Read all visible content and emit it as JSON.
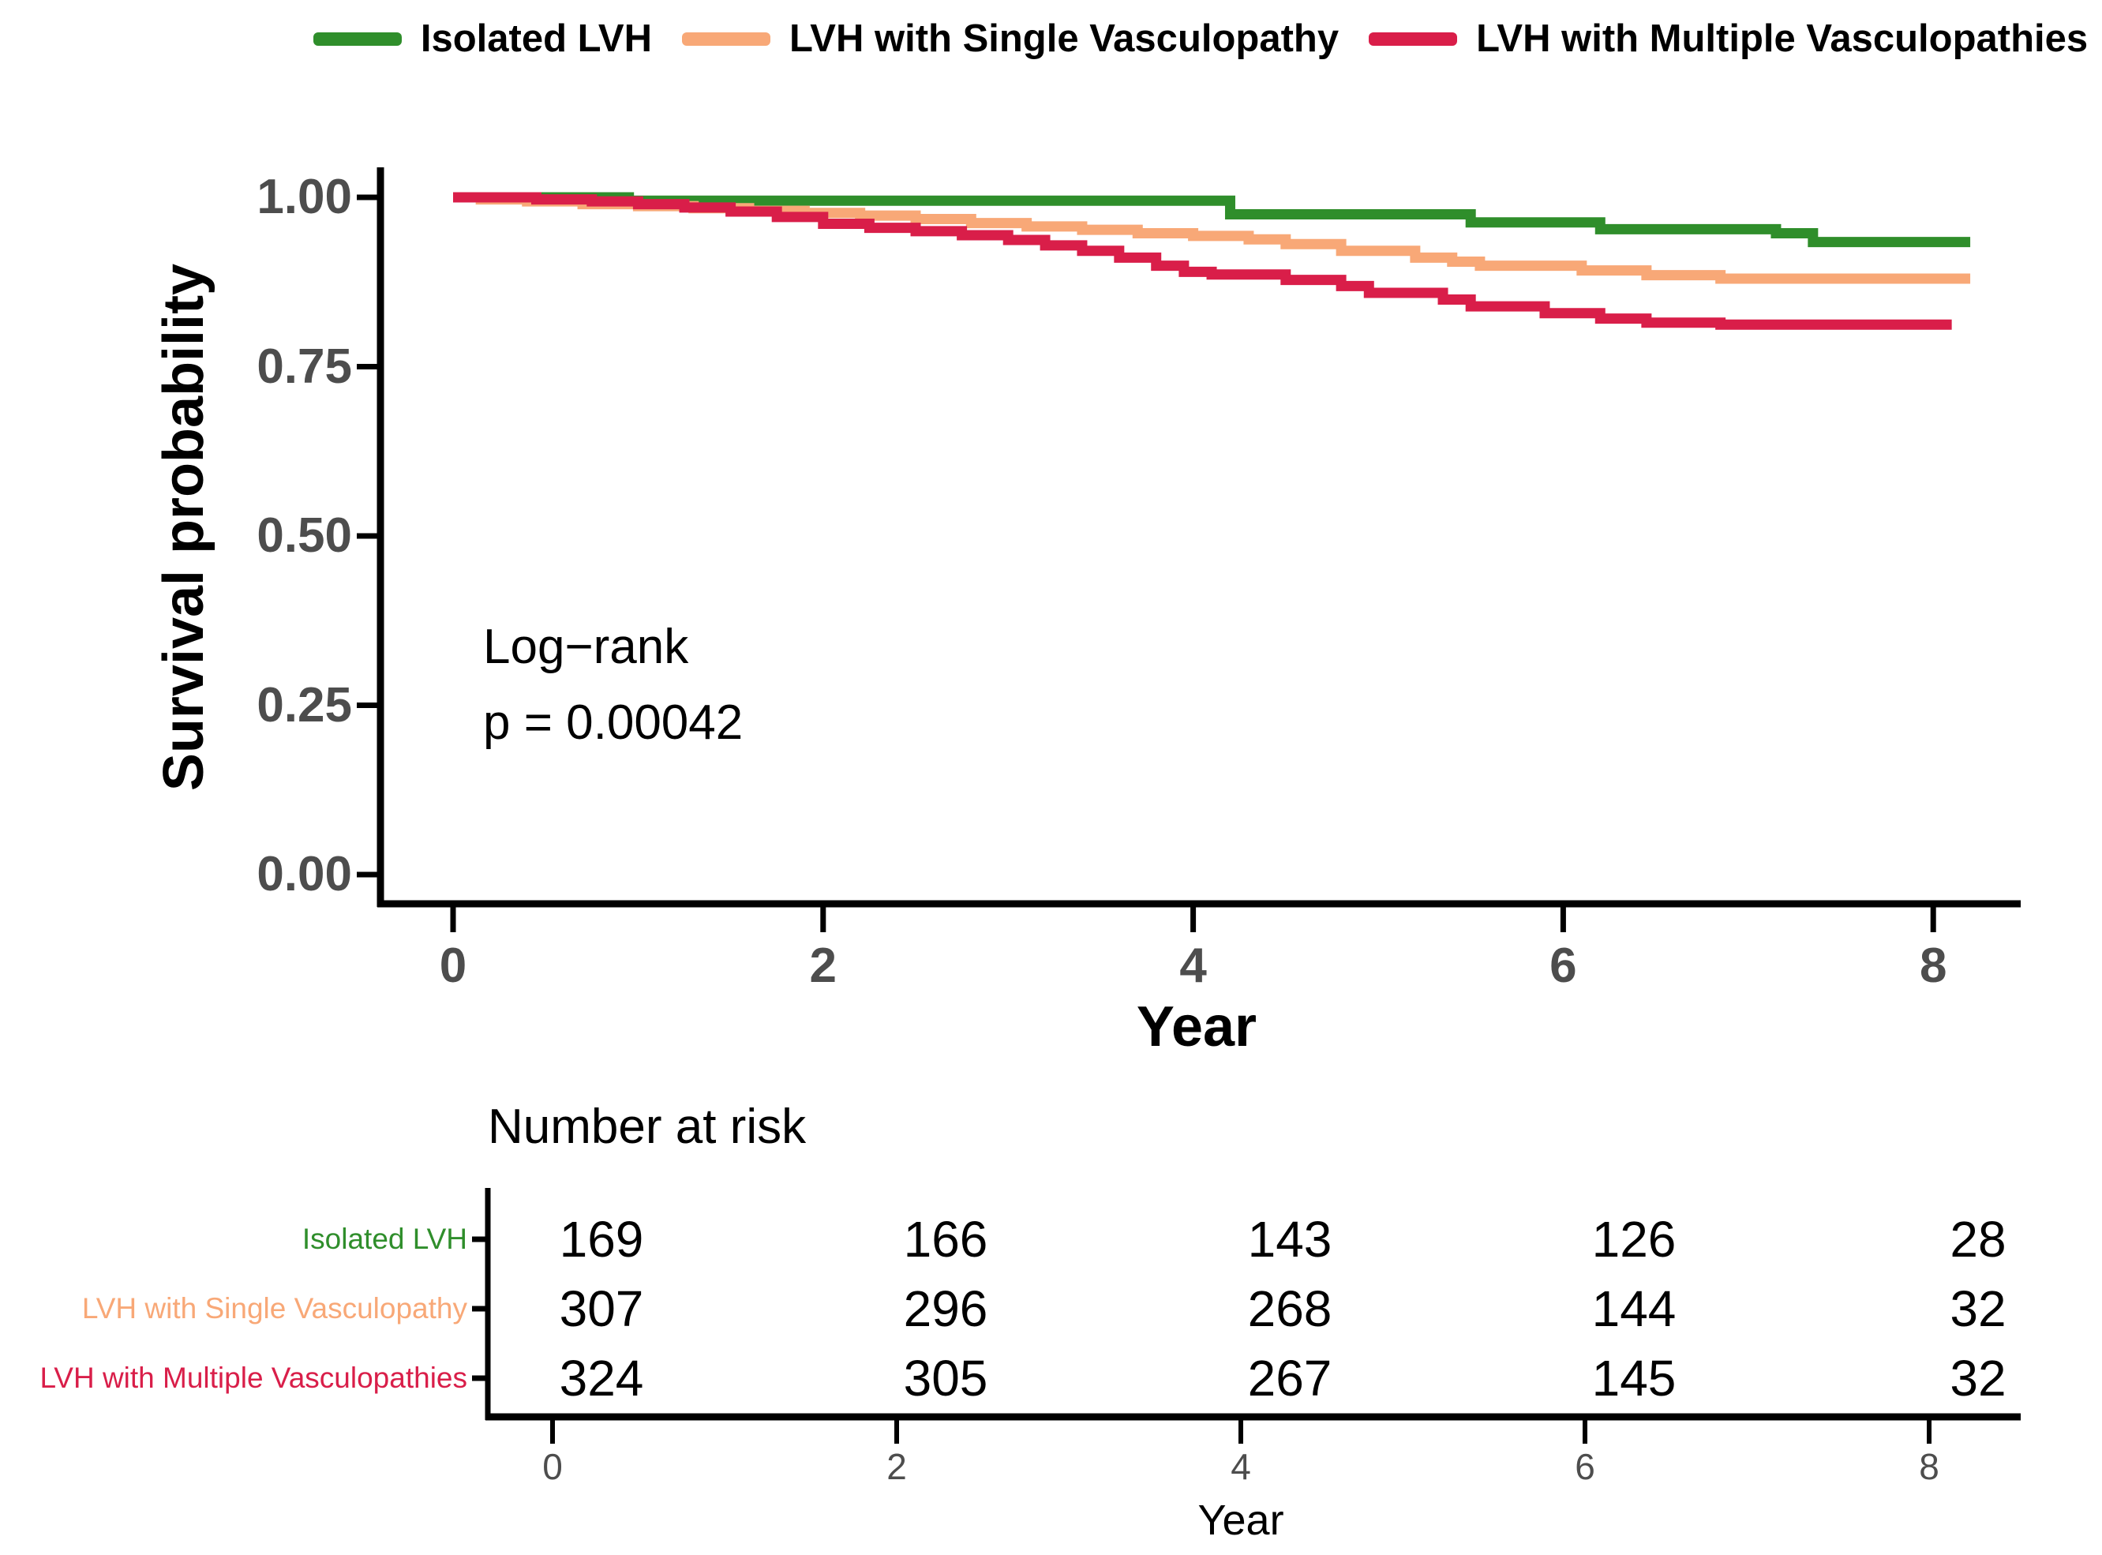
{
  "figure": {
    "kind": "Kaplan-Meier survival plot with number-at-risk table",
    "annotation": {
      "line1": "Log−rank",
      "line2": "p = 0.00042"
    },
    "legend": [
      {
        "label": "Isolated LVH",
        "color": "#2F8E2B"
      },
      {
        "label": "LVH with Single Vasculopathy",
        "color": "#F8A877"
      },
      {
        "label": "LVH with Multiple Vasculopathies",
        "color": "#D91E49"
      }
    ],
    "colors": {
      "axis_text": "#4d4d4d",
      "axis_line": "#000000",
      "background": "#ffffff"
    }
  },
  "chart_data": {
    "type": "line",
    "subtype": "kaplan-meier-step",
    "title": "",
    "xlabel": "Year",
    "ylabel": "Survival probability",
    "xlim": [
      0,
      8.4
    ],
    "ylim": [
      0,
      1.0
    ],
    "grid": false,
    "legend_position": "top",
    "x_ticks": [
      {
        "value": 0,
        "label": "0"
      },
      {
        "value": 2,
        "label": "2"
      },
      {
        "value": 4,
        "label": "4"
      },
      {
        "value": 6,
        "label": "6"
      },
      {
        "value": 8,
        "label": "8"
      }
    ],
    "y_ticks": [
      {
        "value": 1.0,
        "label": "1.00"
      },
      {
        "value": 0.75,
        "label": "0.75"
      },
      {
        "value": 0.5,
        "label": "0.50"
      },
      {
        "value": 0.25,
        "label": "0.25"
      },
      {
        "value": 0.0,
        "label": "0.00"
      }
    ],
    "annotations": [
      "Log−rank",
      "p = 0.00042"
    ],
    "series": [
      {
        "name": "Isolated LVH",
        "color": "#2F8E2B",
        "points": [
          [
            0,
            1.0
          ],
          [
            0.95,
            0.995
          ],
          [
            4.2,
            0.975
          ],
          [
            5.5,
            0.963
          ],
          [
            6.2,
            0.953
          ],
          [
            7.15,
            0.947
          ],
          [
            7.35,
            0.934
          ],
          [
            8.2,
            0.934
          ]
        ]
      },
      {
        "name": "LVH with Single Vasculopathy",
        "color": "#F8A877",
        "points": [
          [
            0,
            1.0
          ],
          [
            0.15,
            0.997
          ],
          [
            0.4,
            0.994
          ],
          [
            0.7,
            0.99
          ],
          [
            1.0,
            0.987
          ],
          [
            1.3,
            0.984
          ],
          [
            1.6,
            0.98
          ],
          [
            1.9,
            0.977
          ],
          [
            2.2,
            0.973
          ],
          [
            2.5,
            0.968
          ],
          [
            2.8,
            0.962
          ],
          [
            3.1,
            0.957
          ],
          [
            3.4,
            0.952
          ],
          [
            3.7,
            0.947
          ],
          [
            4.0,
            0.943
          ],
          [
            4.3,
            0.938
          ],
          [
            4.5,
            0.931
          ],
          [
            4.8,
            0.921
          ],
          [
            5.2,
            0.911
          ],
          [
            5.4,
            0.905
          ],
          [
            5.55,
            0.899
          ],
          [
            6.1,
            0.892
          ],
          [
            6.45,
            0.885
          ],
          [
            6.85,
            0.88
          ],
          [
            8.2,
            0.88
          ]
        ]
      },
      {
        "name": "LVH with Multiple Vasculopathies",
        "color": "#D91E49",
        "points": [
          [
            0,
            1.0
          ],
          [
            0.45,
            0.997
          ],
          [
            0.75,
            0.994
          ],
          [
            1.0,
            0.99
          ],
          [
            1.25,
            0.985
          ],
          [
            1.5,
            0.979
          ],
          [
            1.75,
            0.971
          ],
          [
            2.0,
            0.961
          ],
          [
            2.25,
            0.955
          ],
          [
            2.5,
            0.95
          ],
          [
            2.75,
            0.944
          ],
          [
            3.0,
            0.937
          ],
          [
            3.2,
            0.929
          ],
          [
            3.4,
            0.921
          ],
          [
            3.6,
            0.911
          ],
          [
            3.8,
            0.899
          ],
          [
            3.95,
            0.89
          ],
          [
            4.1,
            0.886
          ],
          [
            4.5,
            0.878
          ],
          [
            4.8,
            0.869
          ],
          [
            4.95,
            0.859
          ],
          [
            5.35,
            0.849
          ],
          [
            5.5,
            0.839
          ],
          [
            5.9,
            0.829
          ],
          [
            6.2,
            0.821
          ],
          [
            6.45,
            0.815
          ],
          [
            6.85,
            0.812
          ],
          [
            8.1,
            0.812
          ]
        ]
      }
    ]
  },
  "risk_table": {
    "title": "Number at risk",
    "xlabel": "Year",
    "x_ticks": [
      {
        "value": 0,
        "label": "0"
      },
      {
        "value": 2,
        "label": "2"
      },
      {
        "value": 4,
        "label": "4"
      },
      {
        "value": 6,
        "label": "6"
      },
      {
        "value": 8,
        "label": "8"
      }
    ],
    "rows": [
      {
        "label": "Isolated LVH",
        "color": "#2F8E2B",
        "values": [
          "169",
          "166",
          "143",
          "126",
          "28"
        ]
      },
      {
        "label": "LVH with Single Vasculopathy",
        "color": "#F8A877",
        "values": [
          "307",
          "296",
          "268",
          "144",
          "32"
        ]
      },
      {
        "label": "LVH with Multiple Vasculopathies",
        "color": "#D91E49",
        "values": [
          "324",
          "305",
          "267",
          "145",
          "32"
        ]
      }
    ]
  }
}
